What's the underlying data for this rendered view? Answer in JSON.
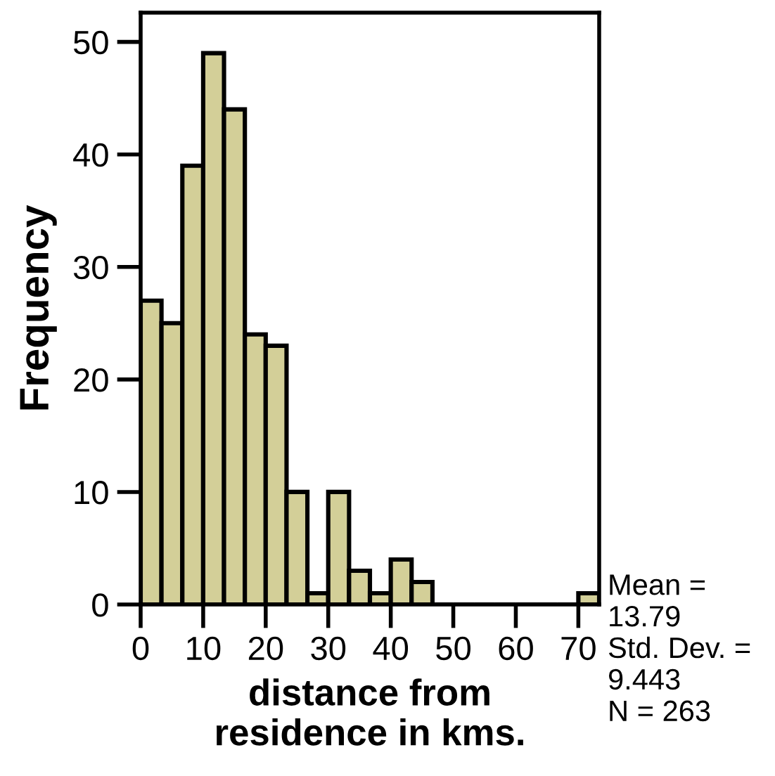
{
  "chart_data": {
    "type": "histogram",
    "xlabel": "distance from\nresidence in kms.",
    "ylabel": "Frequency",
    "bins": [
      0,
      3.333,
      6.667,
      10,
      13.333,
      16.667,
      20,
      23.333,
      26.667,
      30,
      33.333,
      36.667,
      40,
      43.333,
      46.667,
      50,
      53.333,
      56.667,
      60,
      63.333,
      66.667,
      70,
      73.333
    ],
    "values": [
      27,
      25,
      39,
      49,
      44,
      24,
      23,
      10,
      1,
      10,
      3,
      1,
      4,
      2,
      0,
      0,
      0,
      0,
      0,
      0,
      0,
      1
    ],
    "color": "#d3cf98",
    "xlim": [
      0,
      73.333
    ],
    "xticks": [
      0,
      10,
      20,
      30,
      40,
      50,
      60,
      70
    ],
    "ylim": [
      0,
      52.6
    ],
    "yticks": [
      0,
      10,
      20,
      30,
      40,
      50
    ],
    "grid": false,
    "legend": false,
    "annotations": [
      "Mean =\n13.79\nStd. Dev. =\n9.443\nN = 263"
    ]
  }
}
